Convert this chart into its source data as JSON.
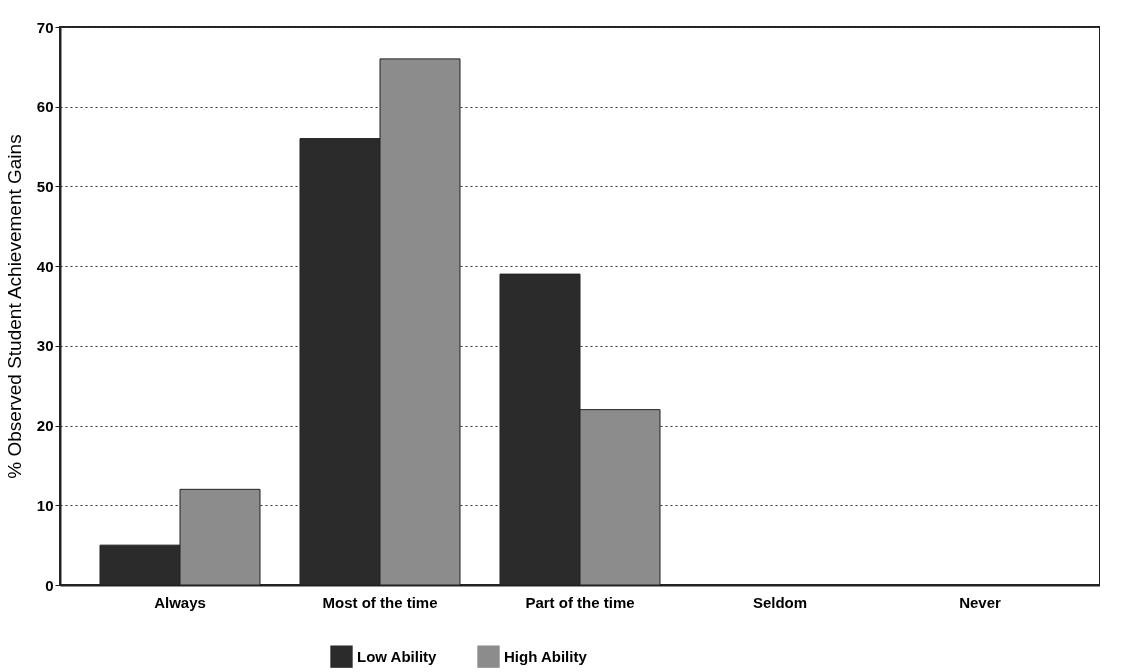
{
  "chart_data": {
    "type": "bar",
    "ylabel": "% Observed Student Achievement Gains",
    "categories": [
      "Always",
      "Most of the time",
      "Part of the time",
      "Seldom",
      "Never"
    ],
    "series": [
      {
        "name": "Low Ability",
        "color": "#2b2b2b",
        "values": [
          5,
          56,
          39,
          null,
          null
        ]
      },
      {
        "name": "High Ability",
        "color": "#8c8c8c",
        "values": [
          12,
          66,
          22,
          null,
          null
        ]
      }
    ],
    "ylim": [
      0,
      70
    ],
    "yticks": [
      0,
      10,
      20,
      30,
      40,
      50,
      60,
      70
    ],
    "grid": "y",
    "legend": "bottom"
  }
}
